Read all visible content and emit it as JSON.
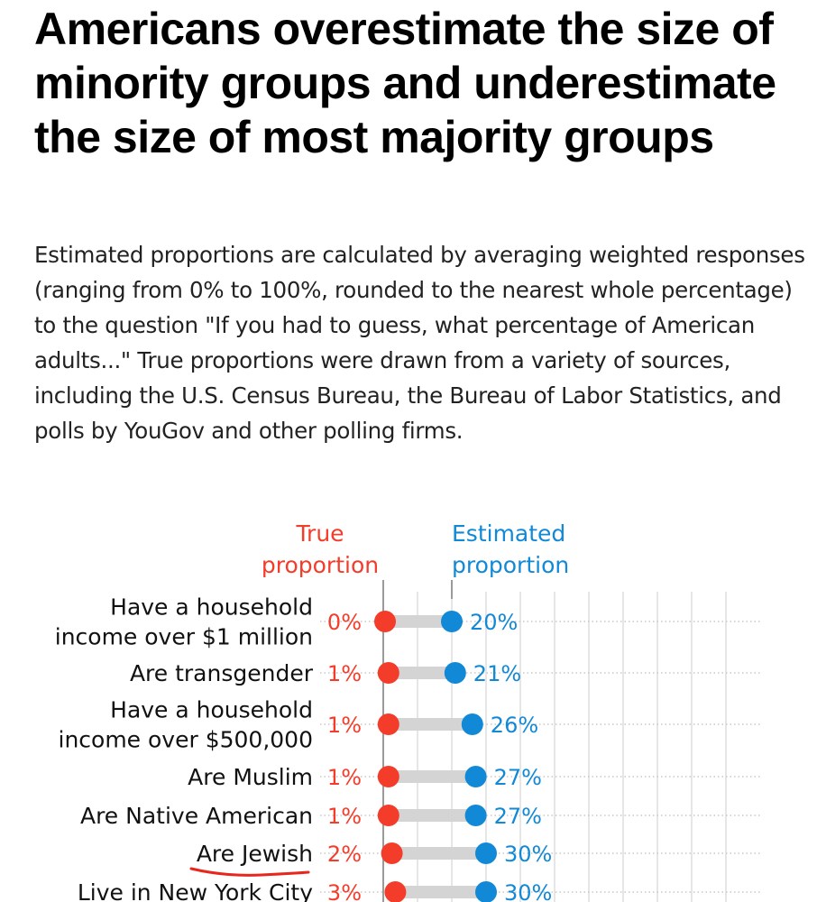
{
  "header": {
    "title": "Americans overestimate the size of minority groups and underestimate the size of most majority groups",
    "description": "Estimated proportions are calculated by averaging weighted responses (ranging from 0% to 100%, rounded to the nearest whole percentage) to the question \"If you had to guess, what percentage of American adults...\" True proportions were drawn from a variety of sources, including the U.S. Census Bureau, the Bureau of Labor Statistics, and polls by YouGov and other polling firms."
  },
  "colors": {
    "true": "#f33d2a",
    "estimated": "#1189d6",
    "connector": "#d4d4d4",
    "grid": "#e6e6e6",
    "annotation": "#e8261c"
  },
  "chart_data": {
    "type": "dumbbell",
    "title": "Americans overestimate the size of minority groups and underestimate the size of most majority groups",
    "legend": {
      "true_label": [
        "True",
        "proportion"
      ],
      "estimated_label": [
        "Estimated",
        "proportion"
      ],
      "placement": "top"
    },
    "xlim": [
      0,
      100
    ],
    "grid": true,
    "categories": [
      [
        "Have a household",
        "income over $1 million"
      ],
      [
        "Are transgender"
      ],
      [
        "Have a household",
        "income over $500,000"
      ],
      [
        "Are Muslim"
      ],
      [
        "Are Native American"
      ],
      [
        "Are Jewish"
      ],
      [
        "Live in New York City"
      ]
    ],
    "series": [
      {
        "name": "True proportion",
        "values": [
          0,
          1,
          1,
          1,
          1,
          2,
          3
        ]
      },
      {
        "name": "Estimated proportion",
        "values": [
          20,
          21,
          26,
          27,
          27,
          30,
          30
        ]
      }
    ],
    "annotations": [
      {
        "type": "hand-drawn underline",
        "target": "Are Jewish"
      }
    ]
  }
}
